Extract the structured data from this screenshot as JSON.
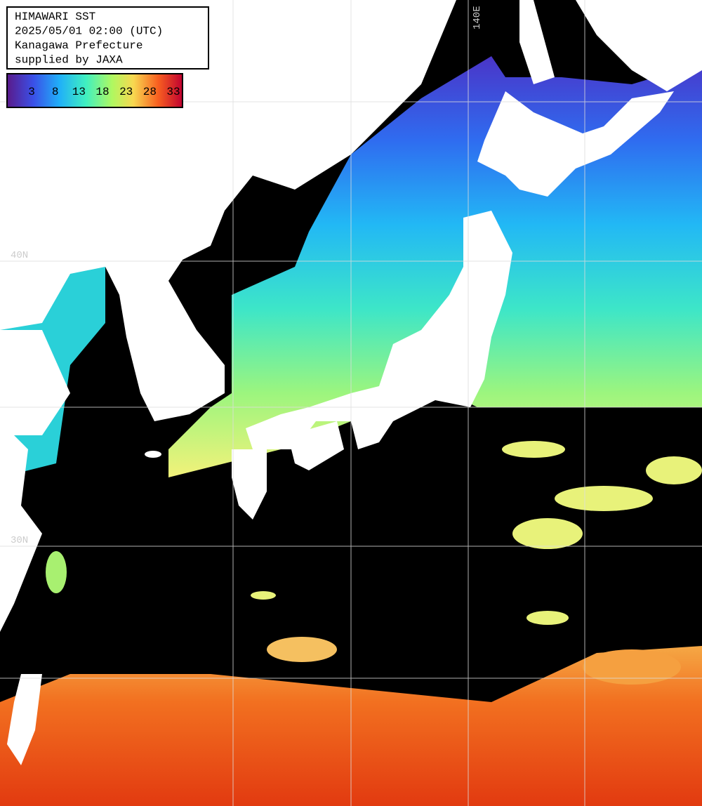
{
  "header": {
    "lines": [
      "HIMAWARI SST",
      "2025/05/01 02:00 (UTC)",
      "Kanagawa Prefecture",
      "supplied by JAXA"
    ]
  },
  "colorbar": {
    "ticks": [
      3,
      8,
      13,
      18,
      23,
      28,
      33
    ]
  },
  "grid": {
    "lon_labels": [
      "140E"
    ],
    "lat_labels": [
      "40N",
      "30N"
    ]
  }
}
